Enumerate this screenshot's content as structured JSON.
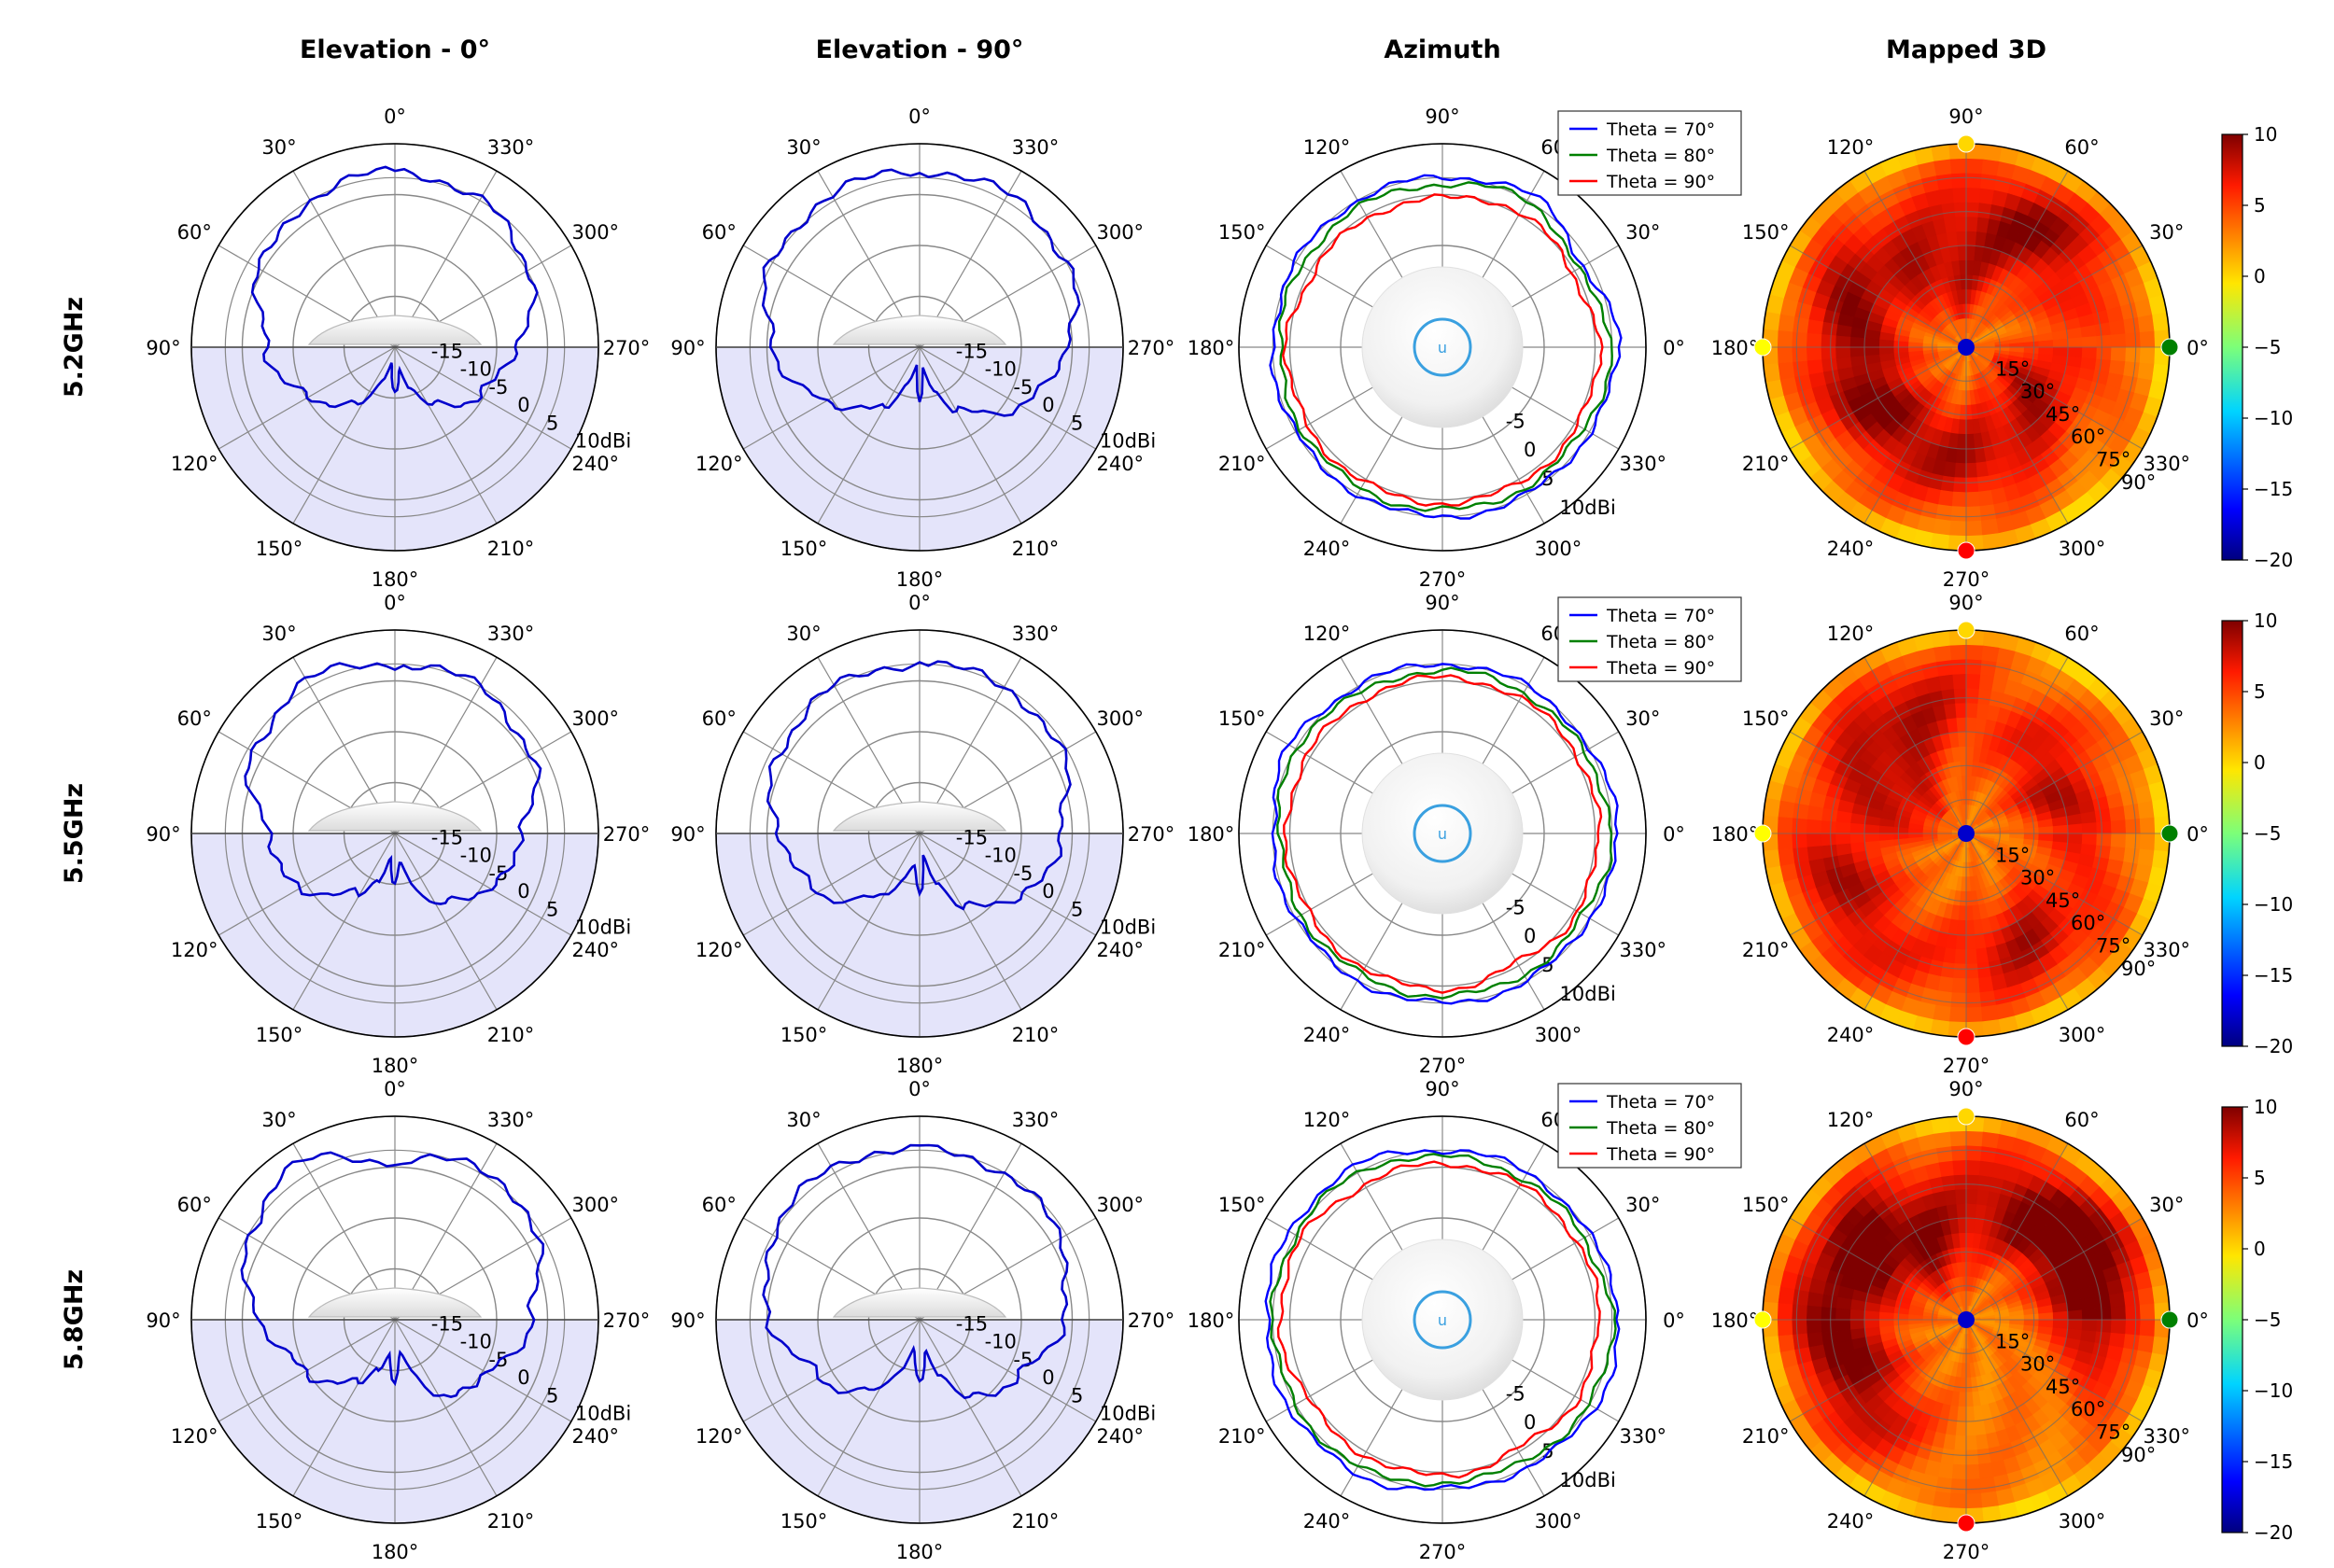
{
  "column_titles": [
    "Elevation - 0°",
    "Elevation - 90°",
    "Azimuth",
    "Mapped 3D"
  ],
  "row_labels": [
    "5.2GHz",
    "5.5GHz",
    "5.8GHz"
  ],
  "colors": {
    "elevation_trace": "#0000cc",
    "lower_hemisphere_fill": "#e4e4fa",
    "theta70": "#0000ff",
    "theta80": "#008000",
    "theta90": "#ff0000",
    "grid": "#888888",
    "marker_0": "#008000",
    "marker_90": "#ffd700",
    "marker_180": "#ffff00",
    "marker_270": "#ff0000",
    "marker_center": "#0000cc"
  },
  "chart_data": [
    {
      "type": "polar-line",
      "title": "Elevation - 0°",
      "angle_ticks": [
        "0°",
        "30°",
        "60°",
        "90°",
        "120°",
        "150°",
        "180°",
        "210°",
        "240°",
        "270°",
        "300°",
        "330°"
      ],
      "radial_ticks": [
        "-15",
        "-10",
        "-5",
        "0",
        "5",
        "10dBi"
      ],
      "rlim": [
        -20,
        10
      ],
      "series_by_band": [
        {
          "band": "5.2GHz",
          "angles": [
            0,
            30,
            60,
            90,
            120,
            150,
            160,
            170,
            180,
            190,
            200,
            210,
            240,
            270,
            300,
            330
          ],
          "gain": [
            6,
            5,
            3,
            -1,
            -5,
            -11,
            -15,
            -17,
            -13,
            -17,
            -14,
            -10,
            -6,
            -2,
            3,
            5
          ]
        },
        {
          "band": "5.5GHz",
          "angles": [
            0,
            30,
            60,
            90,
            120,
            150,
            160,
            170,
            180,
            190,
            200,
            210,
            240,
            270,
            300,
            330
          ],
          "gain": [
            5,
            6,
            4,
            -1,
            -4,
            -10,
            -13,
            -16,
            -12,
            -16,
            -12,
            -8,
            -4,
            -1,
            3,
            5
          ]
        },
        {
          "band": "5.8GHz",
          "angles": [
            0,
            30,
            60,
            90,
            120,
            150,
            160,
            170,
            180,
            190,
            200,
            210,
            240,
            270,
            300,
            330
          ],
          "gain": [
            3,
            7,
            5,
            0,
            -5,
            -9,
            -12,
            -15,
            -11,
            -15,
            -11,
            -7,
            -4,
            0,
            4,
            6
          ]
        }
      ]
    },
    {
      "type": "polar-line",
      "title": "Elevation - 90°",
      "angle_ticks": [
        "0°",
        "30°",
        "60°",
        "90°",
        "120°",
        "150°",
        "180°",
        "210°",
        "240°",
        "270°",
        "300°",
        "330°"
      ],
      "radial_ticks": [
        "-15",
        "-10",
        "-5",
        "0",
        "5",
        "10dBi"
      ],
      "rlim": [
        -20,
        10
      ],
      "series_by_band": [
        {
          "band": "5.2GHz",
          "angles": [
            0,
            30,
            60,
            90,
            120,
            150,
            160,
            170,
            180,
            190,
            200,
            210,
            240,
            270,
            300,
            330
          ],
          "gain": [
            6,
            6,
            5,
            2,
            -4,
            -10,
            -14,
            -17,
            -12,
            -17,
            -13,
            -9,
            -3,
            2,
            5,
            6
          ]
        },
        {
          "band": "5.5GHz",
          "angles": [
            0,
            30,
            60,
            90,
            120,
            150,
            160,
            170,
            180,
            190,
            200,
            210,
            240,
            270,
            300,
            330
          ],
          "gain": [
            5,
            5,
            4,
            1,
            -3,
            -9,
            -13,
            -16,
            -11,
            -16,
            -12,
            -8,
            -2,
            1,
            4,
            5
          ]
        },
        {
          "band": "5.8GHz",
          "angles": [
            0,
            30,
            60,
            90,
            120,
            150,
            160,
            170,
            180,
            190,
            200,
            210,
            240,
            270,
            300,
            330
          ],
          "gain": [
            5,
            6,
            5,
            2,
            -3,
            -8,
            -12,
            -16,
            -11,
            -15,
            -11,
            -7,
            -3,
            1,
            4,
            5
          ]
        }
      ]
    },
    {
      "type": "polar-line",
      "title": "Azimuth",
      "angle_ticks": [
        "0°",
        "30°",
        "60°",
        "90°",
        "120°",
        "150°",
        "180°",
        "210°",
        "240°",
        "270°",
        "300°",
        "330°"
      ],
      "radial_ticks": [
        "-5",
        "0",
        "5",
        "10dBi"
      ],
      "rlim": [
        -20,
        10
      ],
      "legend": [
        "Theta = 70°",
        "Theta = 80°",
        "Theta = 90°"
      ],
      "legend_position": "top-right",
      "series_by_band": [
        {
          "band": "5.2GHz",
          "angles": [
            0,
            30,
            60,
            90,
            120,
            150,
            180,
            210,
            240,
            270,
            300,
            330
          ],
          "theta70": [
            6,
            4,
            6,
            5,
            5,
            5,
            5,
            5,
            5,
            5,
            5,
            5
          ],
          "theta80": [
            5,
            3,
            5,
            4,
            4,
            4,
            4,
            4,
            4,
            4,
            4,
            4
          ],
          "theta90": [
            3,
            2,
            3,
            2,
            2,
            2,
            3,
            3,
            3,
            3,
            3,
            3
          ]
        },
        {
          "band": "5.5GHz",
          "angles": [
            0,
            30,
            60,
            90,
            120,
            150,
            180,
            210,
            240,
            270,
            300,
            330
          ],
          "theta70": [
            6,
            5,
            5,
            5,
            5,
            6,
            5,
            5,
            5,
            5,
            5,
            5
          ],
          "theta80": [
            5,
            4,
            4,
            4,
            4,
            5,
            4,
            4,
            4,
            4,
            4,
            4
          ],
          "theta90": [
            3,
            3,
            3,
            3,
            3,
            3,
            3,
            3,
            3,
            3,
            2,
            3
          ]
        },
        {
          "band": "5.8GHz",
          "angles": [
            0,
            30,
            60,
            90,
            120,
            150,
            180,
            210,
            240,
            270,
            300,
            330
          ],
          "theta70": [
            6,
            5,
            5,
            5,
            6,
            6,
            6,
            6,
            6,
            5,
            5,
            6
          ],
          "theta80": [
            5,
            4,
            4,
            4,
            5,
            5,
            5,
            5,
            5,
            4,
            4,
            5
          ],
          "theta90": [
            3,
            3,
            3,
            3,
            3,
            4,
            4,
            3,
            3,
            3,
            2,
            3
          ]
        }
      ]
    },
    {
      "type": "heatmap",
      "title": "Mapped 3D",
      "angle_ticks": [
        "0°",
        "30°",
        "60°",
        "90°",
        "120°",
        "150°",
        "180°",
        "210°",
        "240°",
        "270°",
        "300°",
        "330°"
      ],
      "radial_ticks": [
        "15°",
        "30°",
        "45°",
        "60°",
        "75°",
        "90°"
      ],
      "colorbar_ticks": [
        "10",
        "5",
        "0",
        "−5",
        "−10",
        "−15",
        "−20"
      ],
      "colorbar_range": [
        -20,
        10
      ],
      "hot_spots_by_band": [
        {
          "band": "5.2GHz",
          "spots": [
            [
              60,
              60,
              7
            ],
            [
              150,
              55,
              6
            ],
            [
              210,
              45,
              7
            ],
            [
              330,
              35,
              6
            ],
            [
              100,
              30,
              5
            ],
            [
              270,
              50,
              5
            ]
          ],
          "base": 3
        },
        {
          "band": "5.5GHz",
          "spots": [
            [
              120,
              60,
              6
            ],
            [
              210,
              60,
              6
            ],
            [
              300,
              55,
              6
            ],
            [
              30,
              45,
              6
            ],
            [
              150,
              30,
              5
            ]
          ],
          "base": 3
        },
        {
          "band": "5.8GHz",
          "spots": [
            [
              50,
              55,
              8
            ],
            [
              150,
              60,
              7
            ],
            [
              210,
              55,
              7
            ],
            [
              120,
              35,
              6
            ],
            [
              10,
              60,
              6
            ]
          ],
          "base": 3
        }
      ]
    }
  ]
}
